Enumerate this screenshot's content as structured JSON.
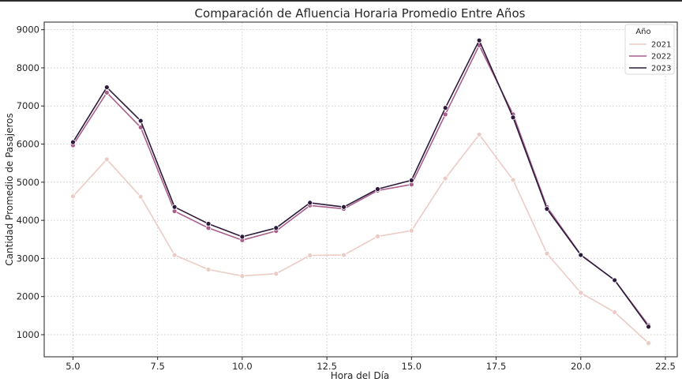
{
  "chart_data": {
    "type": "line",
    "title": "Comparación de Afluencia Horaria Promedio Entre Años",
    "xlabel": "Hora del Día",
    "ylabel": "Cantidad Promedio de Pasajeros",
    "xlim": [
      4.15,
      22.85
    ],
    "ylim": [
      420,
      9200
    ],
    "xticks": [
      "5.0",
      "7.5",
      "10.0",
      "12.5",
      "15.0",
      "17.5",
      "20.0",
      "22.5"
    ],
    "xtick_values": [
      5,
      7.5,
      10,
      12.5,
      15,
      17.5,
      20,
      22.5
    ],
    "yticks": [
      "1000",
      "2000",
      "3000",
      "4000",
      "5000",
      "6000",
      "7000",
      "8000",
      "9000"
    ],
    "ytick_values": [
      1000,
      2000,
      3000,
      4000,
      5000,
      6000,
      7000,
      8000,
      9000
    ],
    "grid": true,
    "legend": {
      "title": "Año",
      "placement": "top-right"
    },
    "x": [
      5,
      6,
      7,
      8,
      9,
      10,
      11,
      12,
      13,
      14,
      15,
      16,
      17,
      18,
      19,
      20,
      21,
      22
    ],
    "series": [
      {
        "name": "2021",
        "color": "#ebcbc6",
        "values": [
          4630,
          5600,
          4620,
          3090,
          2710,
          2540,
          2600,
          3080,
          3090,
          3580,
          3730,
          5100,
          6250,
          5060,
          3130,
          2100,
          1590,
          780
        ]
      },
      {
        "name": "2022",
        "color": "#a85f8c",
        "values": [
          5970,
          7350,
          6440,
          4240,
          3800,
          3480,
          3720,
          4390,
          4300,
          4780,
          4940,
          6780,
          8590,
          6780,
          4350,
          3100,
          2430,
          1250
        ]
      },
      {
        "name": "2023",
        "color": "#2c1a3b",
        "values": [
          6050,
          7490,
          6610,
          4350,
          3910,
          3570,
          3800,
          4460,
          4350,
          4820,
          5050,
          6950,
          8720,
          6700,
          4300,
          3090,
          2430,
          1210
        ]
      }
    ]
  }
}
